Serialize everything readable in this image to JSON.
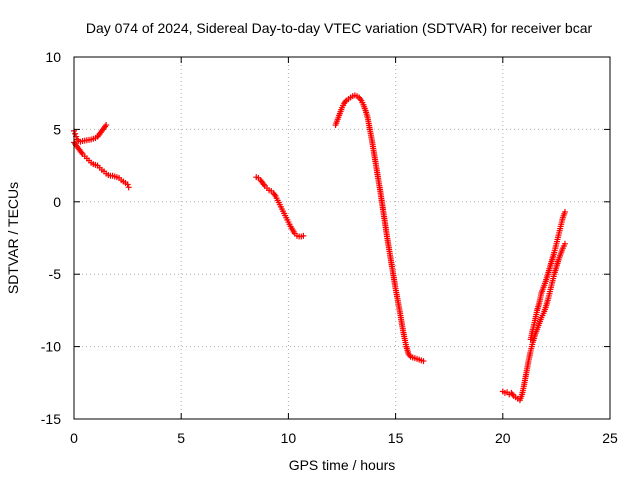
{
  "chart_data": {
    "type": "scatter",
    "title": "Day 074 of 2024, Sidereal Day-to-day VTEC variation (SDTVAR) for receiver bcar",
    "xlabel": "GPS time / hours",
    "ylabel": "SDTVAR / TECUs",
    "xlim": [
      0,
      25
    ],
    "ylim": [
      -15,
      10
    ],
    "xticks": [
      "0",
      "5",
      "10",
      "15",
      "20",
      "25"
    ],
    "yticks": [
      "-15",
      "-10",
      "-5",
      "0",
      "5",
      "10"
    ],
    "grid": true,
    "marker": "+",
    "color": "#ff0000",
    "series": [
      {
        "x": [
          0.0,
          0.05,
          0.1,
          0.15,
          0.2,
          0.3,
          0.4,
          0.6,
          0.8,
          1.0,
          1.1,
          1.2,
          1.3,
          1.4,
          1.5
        ],
        "y": [
          4.9,
          4.7,
          4.5,
          4.3,
          4.2,
          4.15,
          4.2,
          4.25,
          4.3,
          4.4,
          4.5,
          4.7,
          4.9,
          5.1,
          5.3
        ]
      },
      {
        "x": [
          0.0,
          0.1,
          0.2,
          0.3,
          0.4,
          0.5,
          0.6,
          0.7,
          0.8,
          0.9,
          1.0,
          1.1,
          1.2,
          1.3,
          1.4,
          1.5,
          1.6,
          1.7,
          1.8,
          1.9,
          2.0,
          2.1,
          2.2,
          2.3,
          2.4,
          2.5,
          2.55
        ],
        "y": [
          4.1,
          3.9,
          3.7,
          3.5,
          3.3,
          3.15,
          3.0,
          2.85,
          2.7,
          2.6,
          2.55,
          2.5,
          2.35,
          2.2,
          2.1,
          1.95,
          1.85,
          1.8,
          1.8,
          1.75,
          1.7,
          1.65,
          1.5,
          1.4,
          1.3,
          1.2,
          1.0
        ]
      },
      {
        "x": [
          8.5,
          8.6,
          8.7,
          8.8,
          8.9,
          9.0,
          9.1,
          9.2,
          9.3,
          9.4,
          9.5,
          9.6,
          9.7,
          9.8,
          9.9,
          10.0,
          10.1,
          10.2,
          10.3,
          10.4,
          10.5,
          10.6,
          10.7
        ],
        "y": [
          1.7,
          1.65,
          1.5,
          1.3,
          1.1,
          0.95,
          0.8,
          0.75,
          0.6,
          0.4,
          0.1,
          -0.2,
          -0.5,
          -0.8,
          -1.1,
          -1.4,
          -1.7,
          -1.95,
          -2.2,
          -2.35,
          -2.4,
          -2.4,
          -2.35
        ]
      },
      {
        "x": [
          12.2,
          12.3,
          12.4,
          12.5,
          12.6,
          12.7,
          12.8,
          12.9,
          13.0,
          13.1,
          13.2,
          13.3,
          13.4,
          13.5,
          13.6,
          13.7,
          13.8,
          13.9,
          14.0,
          14.1,
          14.2,
          14.3,
          14.4,
          14.5,
          14.6,
          14.7,
          14.8,
          14.9,
          15.0,
          15.1,
          15.2,
          15.3,
          15.4,
          15.5,
          15.6,
          15.7,
          15.8,
          15.9,
          16.0,
          16.1,
          16.2,
          16.3
        ],
        "y": [
          5.3,
          5.7,
          6.1,
          6.5,
          6.8,
          7.0,
          7.1,
          7.2,
          7.3,
          7.35,
          7.3,
          7.2,
          7.0,
          6.7,
          6.3,
          5.8,
          5.0,
          4.2,
          3.3,
          2.4,
          1.5,
          0.6,
          -0.4,
          -1.4,
          -2.4,
          -3.3,
          -4.2,
          -5.1,
          -6.0,
          -6.8,
          -7.6,
          -8.5,
          -9.3,
          -10.0,
          -10.5,
          -10.7,
          -10.75,
          -10.8,
          -10.85,
          -10.9,
          -10.95,
          -11.0
        ]
      },
      {
        "x": [
          20.0,
          20.1,
          20.2,
          20.3,
          20.4,
          20.5,
          20.6,
          20.7,
          20.8,
          20.9,
          21.0,
          21.1,
          21.2,
          21.3,
          21.4,
          21.5,
          21.6,
          21.7,
          21.8,
          21.9,
          22.0,
          22.1,
          22.2,
          22.3,
          22.4,
          22.5,
          22.6,
          22.7,
          22.8,
          22.9
        ],
        "y": [
          -13.1,
          -13.2,
          -13.15,
          -13.3,
          -13.2,
          -13.4,
          -13.5,
          -13.6,
          -13.7,
          -13.3,
          -12.6,
          -11.8,
          -11.0,
          -10.3,
          -9.7,
          -9.2,
          -8.8,
          -8.4,
          -8.0,
          -7.7,
          -7.3,
          -6.8,
          -6.2,
          -5.6,
          -5.0,
          -4.5,
          -4.0,
          -3.6,
          -3.2,
          -2.9
        ]
      },
      {
        "x": [
          21.3,
          21.4,
          21.5,
          21.6,
          21.7,
          21.8,
          21.9,
          22.0,
          22.1,
          22.2,
          22.3,
          22.4,
          22.5,
          22.6,
          22.7,
          22.8,
          22.9
        ],
        "y": [
          -9.5,
          -8.8,
          -8.2,
          -7.5,
          -7.0,
          -6.3,
          -5.9,
          -5.5,
          -5.0,
          -4.5,
          -4.0,
          -3.5,
          -2.9,
          -2.3,
          -1.7,
          -1.1,
          -0.7
        ]
      }
    ]
  }
}
